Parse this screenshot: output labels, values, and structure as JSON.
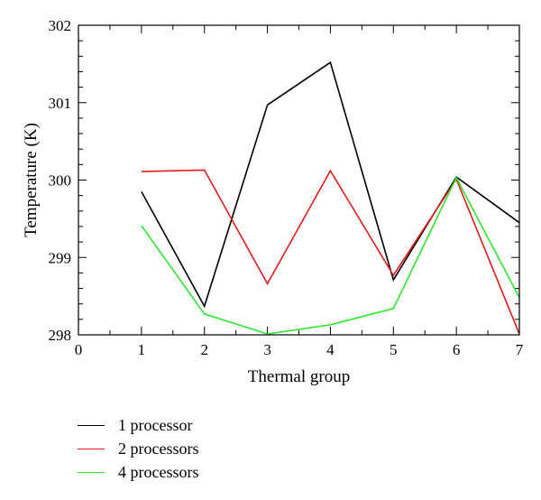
{
  "chart_data": {
    "type": "line",
    "xlabel": "Thermal group",
    "ylabel": "Temperature (K)",
    "xlim": [
      0,
      7
    ],
    "ylim": [
      298,
      302
    ],
    "xticks": [
      0,
      1,
      2,
      3,
      4,
      5,
      6,
      7
    ],
    "yticks": [
      298,
      299,
      300,
      301,
      302
    ],
    "grid": false,
    "legend_position": "bottom-left, outside plot",
    "x": [
      1,
      2,
      3,
      4,
      5,
      6,
      7
    ],
    "series": [
      {
        "name": "1 processor",
        "color": "#000000",
        "values": [
          299.85,
          298.37,
          300.97,
          301.52,
          298.71,
          300.04,
          299.45
        ]
      },
      {
        "name": "2 processors",
        "color": "#e41a1a",
        "values": [
          300.11,
          300.13,
          298.66,
          300.12,
          298.77,
          300.01,
          298.01
        ]
      },
      {
        "name": "4 processors",
        "color": "#2ee82e",
        "values": [
          299.41,
          298.27,
          298.01,
          298.13,
          298.34,
          300.03,
          298.48
        ]
      }
    ]
  }
}
